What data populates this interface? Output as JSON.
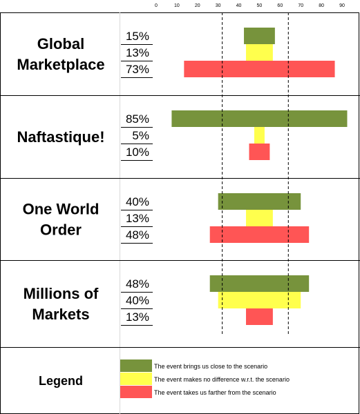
{
  "chart_data": {
    "type": "bar",
    "layout": "centered-diverging-bars",
    "x_ticks": [
      0,
      10,
      20,
      30,
      40,
      50,
      60,
      70,
      80,
      90
    ],
    "xlim": [
      0,
      90
    ],
    "center": 50,
    "dashed_reference_lines": [
      32,
      64
    ],
    "categories": [
      "Global Marketplace",
      "Naftastique!",
      "One World Order",
      "Millions of Markets"
    ],
    "scenario_labels": [
      [
        "Global",
        "Marketplace"
      ],
      [
        "Naftastique!"
      ],
      [
        "One World",
        "Order"
      ],
      [
        "Millions of",
        "Markets"
      ]
    ],
    "series": [
      {
        "name": "The event brings us close to the scenario",
        "color": "#77933c",
        "values": [
          15,
          85,
          40,
          48
        ]
      },
      {
        "name": "The event makes no difference w.r.t. the scenario",
        "color": "#ffff4d",
        "values": [
          13,
          5,
          13,
          40
        ]
      },
      {
        "name": "The event takes us farther from the scenario",
        "color": "#ff5555",
        "values": [
          73,
          10,
          48,
          13
        ]
      }
    ],
    "percent_labels": [
      [
        "15%",
        "13%",
        "73%"
      ],
      [
        "85%",
        "5%",
        "10%"
      ],
      [
        "40%",
        "13%",
        "48%"
      ],
      [
        "48%",
        "40%",
        "13%"
      ]
    ],
    "legend": {
      "title": "Legend",
      "placement": "bottom"
    }
  }
}
